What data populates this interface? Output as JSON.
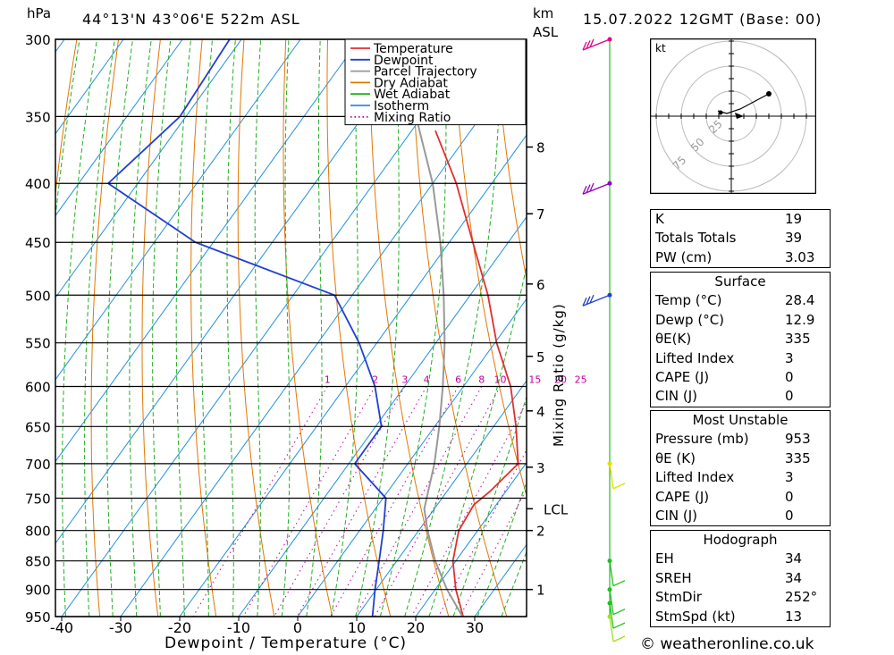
{
  "header": {
    "coords": "44°13'N  43°06'E  522m  ASL",
    "date": "15.07.2022  12GMT  (Base: 00)",
    "hpa_label": "hPa",
    "km_label": "km",
    "asl_label": "ASL"
  },
  "copyright": "© weatheronline.co.uk",
  "chart_data": {
    "type": "skew-t",
    "xlabel": "Dewpoint / Temperature (°C)",
    "ylabel_left": "hPa",
    "ylabel_right": "Mixing Ratio (g/kg)",
    "pressure_levels": [
      300,
      350,
      400,
      450,
      500,
      550,
      600,
      650,
      700,
      750,
      800,
      850,
      900,
      950
    ],
    "temperature_ticks": [
      -40,
      -30,
      -20,
      -10,
      0,
      10,
      20,
      30
    ],
    "km_ticks": [
      {
        "km": "8",
        "p": 372
      },
      {
        "km": "7",
        "p": 425
      },
      {
        "km": "6",
        "p": 489
      },
      {
        "km": "5",
        "p": 565
      },
      {
        "km": "4",
        "p": 630
      },
      {
        "km": "3",
        "p": 705
      },
      {
        "km": "2",
        "p": 800
      },
      {
        "km": "1",
        "p": 900
      }
    ],
    "lcl": {
      "label": "LCL",
      "p": 766
    },
    "mixing_ratios": [
      {
        "label": "1",
        "value": 1
      },
      {
        "label": "2",
        "value": 2
      },
      {
        "label": "3",
        "value": 3
      },
      {
        "label": "4",
        "value": 4
      },
      {
        "label": "6",
        "value": 6
      },
      {
        "label": "8",
        "value": 8
      },
      {
        "label": "10",
        "value": 10
      },
      {
        "label": "15",
        "value": 15
      },
      {
        "label": "20",
        "value": 20
      },
      {
        "label": "25",
        "value": 25
      }
    ],
    "legend": [
      {
        "name": "Temperature",
        "color": "#e03030",
        "style": "solid"
      },
      {
        "name": "Dewpoint",
        "color": "#2040d0",
        "style": "solid"
      },
      {
        "name": "Parcel Trajectory",
        "color": "#999999",
        "style": "solid"
      },
      {
        "name": "Dry Adiabat",
        "color": "#e07800",
        "style": "solid"
      },
      {
        "name": "Wet Adiabat",
        "color": "#20b020",
        "style": "solid"
      },
      {
        "name": "Isotherm",
        "color": "#2090e0",
        "style": "solid"
      },
      {
        "name": "Mixing Ratio",
        "color": "#c000a0",
        "style": "dotted"
      }
    ],
    "series": [
      {
        "name": "Temperature",
        "color": "#e03030",
        "points": [
          {
            "p": 954,
            "t": 28.4
          },
          {
            "p": 900,
            "t": 23.5
          },
          {
            "p": 850,
            "t": 19.5
          },
          {
            "p": 800,
            "t": 16.8
          },
          {
            "p": 760,
            "t": 16.2
          },
          {
            "p": 740,
            "t": 17.3
          },
          {
            "p": 700,
            "t": 18.7
          },
          {
            "p": 650,
            "t": 13.8
          },
          {
            "p": 600,
            "t": 8.0
          },
          {
            "p": 550,
            "t": 0.3
          },
          {
            "p": 500,
            "t": -7.0
          },
          {
            "p": 450,
            "t": -16.0
          },
          {
            "p": 400,
            "t": -26.0
          },
          {
            "p": 360,
            "t": -36.0
          }
        ]
      },
      {
        "name": "Dewpoint",
        "color": "#2040d0",
        "points": [
          {
            "p": 954,
            "t": 12.9
          },
          {
            "p": 900,
            "t": 9.8
          },
          {
            "p": 850,
            "t": 7.0
          },
          {
            "p": 800,
            "t": 4.0
          },
          {
            "p": 750,
            "t": 0.5
          },
          {
            "p": 700,
            "t": -9.0
          },
          {
            "p": 650,
            "t": -9.0
          },
          {
            "p": 600,
            "t": -15.0
          },
          {
            "p": 550,
            "t": -23.0
          },
          {
            "p": 500,
            "t": -33.0
          },
          {
            "p": 450,
            "t": -63.0
          },
          {
            "p": 400,
            "t": -85.0
          },
          {
            "p": 350,
            "t": -81.0
          },
          {
            "p": 300,
            "t": -82.0
          }
        ]
      },
      {
        "name": "Parcel Trajectory",
        "color": "#999999",
        "points": [
          {
            "p": 954,
            "t": 28.4
          },
          {
            "p": 900,
            "t": 22.0
          },
          {
            "p": 850,
            "t": 16.5
          },
          {
            "p": 800,
            "t": 11.5
          },
          {
            "p": 766,
            "t": 8.3
          },
          {
            "p": 700,
            "t": 4.5
          },
          {
            "p": 650,
            "t": 0.8
          },
          {
            "p": 600,
            "t": -3.5
          },
          {
            "p": 550,
            "t": -8.5
          },
          {
            "p": 500,
            "t": -14.5
          },
          {
            "p": 450,
            "t": -21.5
          },
          {
            "p": 400,
            "t": -30.0
          },
          {
            "p": 350,
            "t": -41.0
          },
          {
            "p": 300,
            "t": -54.0
          }
        ]
      }
    ],
    "wind_barbs": [
      {
        "p": 300,
        "color": "#e0008c"
      },
      {
        "p": 400,
        "color": "#9000c0"
      },
      {
        "p": 500,
        "color": "#2040d0"
      },
      {
        "p": 700,
        "color": "#e0e000"
      },
      {
        "p": 850,
        "color": "#20c020"
      },
      {
        "p": 900,
        "color": "#20c020"
      },
      {
        "p": 925,
        "color": "#20c020"
      },
      {
        "p": 950,
        "color": "#a0e020"
      }
    ],
    "hodograph": {
      "unit_label": "kt",
      "ring_labels": [
        "25",
        "50",
        "75"
      ]
    }
  },
  "indices": {
    "rows": [
      {
        "label": "K",
        "value": "19"
      },
      {
        "label": "Totals Totals",
        "value": "39"
      },
      {
        "label": "PW (cm)",
        "value": "3.03"
      }
    ]
  },
  "surface": {
    "title": "Surface",
    "rows": [
      {
        "label": "Temp (°C)",
        "value": "28.4"
      },
      {
        "label": "Dewp (°C)",
        "value": "12.9"
      },
      {
        "label": "θE(K)",
        "value": "335"
      },
      {
        "label": "Lifted Index",
        "value": "3"
      },
      {
        "label": "CAPE (J)",
        "value": "0"
      },
      {
        "label": "CIN (J)",
        "value": "0"
      }
    ]
  },
  "most_unstable": {
    "title": "Most Unstable",
    "rows": [
      {
        "label": "Pressure (mb)",
        "value": "953"
      },
      {
        "label": "θE (K)",
        "value": "335"
      },
      {
        "label": "Lifted Index",
        "value": "3"
      },
      {
        "label": "CAPE (J)",
        "value": "0"
      },
      {
        "label": "CIN (J)",
        "value": "0"
      }
    ]
  },
  "hodograph_table": {
    "title": "Hodograph",
    "rows": [
      {
        "label": "EH",
        "value": "34"
      },
      {
        "label": "SREH",
        "value": "34"
      },
      {
        "label": "StmDir",
        "value": "252°"
      },
      {
        "label": "StmSpd (kt)",
        "value": "13"
      }
    ]
  }
}
